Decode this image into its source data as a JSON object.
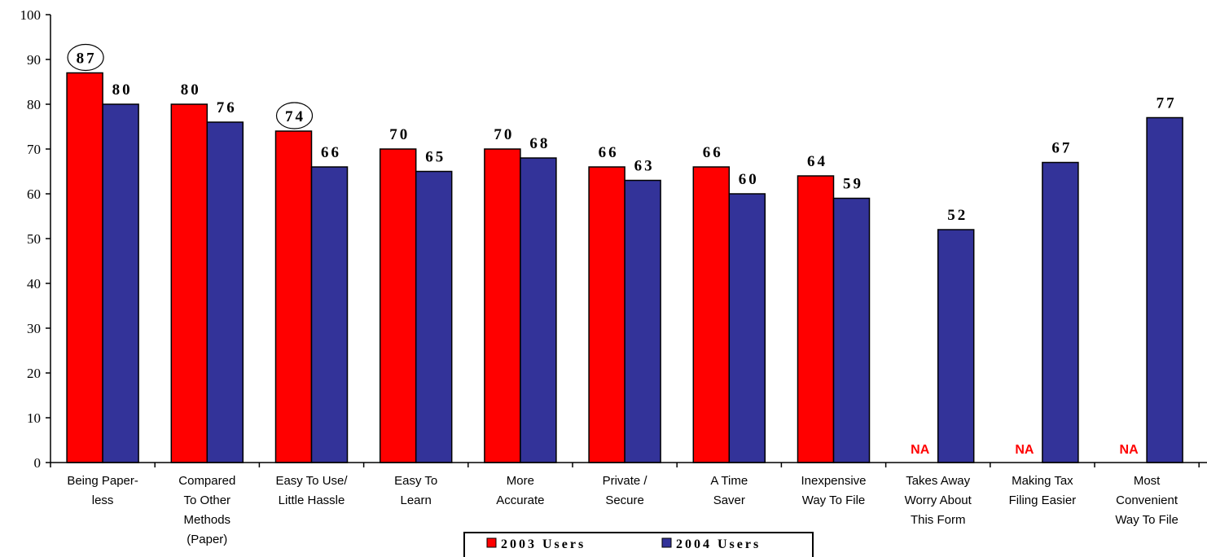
{
  "chart_data": {
    "type": "bar",
    "ylim": [
      0,
      100
    ],
    "yticks": [
      "0",
      "10",
      "20",
      "30",
      "40",
      "50",
      "60",
      "70",
      "80",
      "90",
      "100"
    ],
    "categories": [
      [
        "Being Paper-",
        "less"
      ],
      [
        "Compared",
        "To Other",
        "Methods",
        "(Paper)"
      ],
      [
        "Easy To Use/",
        "Little Hassle"
      ],
      [
        "Easy To",
        "Learn"
      ],
      [
        "More",
        "Accurate"
      ],
      [
        "Private /",
        "Secure"
      ],
      [
        "A Time",
        "Saver"
      ],
      [
        "Inexpensive",
        "Way To File"
      ],
      [
        "Takes Away",
        "Worry About",
        "This Form"
      ],
      [
        "Making Tax",
        "Filing Easier"
      ],
      [
        "Most",
        "Convenient",
        "Way To File"
      ]
    ],
    "series": [
      {
        "name": "2003 Users",
        "color": "#ff0000",
        "values": [
          87,
          80,
          74,
          70,
          70,
          66,
          66,
          64,
          null,
          null,
          null
        ]
      },
      {
        "name": "2004 Users",
        "color": "#333399",
        "values": [
          80,
          76,
          66,
          65,
          68,
          63,
          60,
          59,
          52,
          67,
          77
        ]
      }
    ],
    "missing_label": "NA",
    "circled_values": [
      {
        "series": 0,
        "index": 0
      },
      {
        "series": 0,
        "index": 2
      }
    ],
    "legend_position": "bottom-center",
    "grid": false
  }
}
